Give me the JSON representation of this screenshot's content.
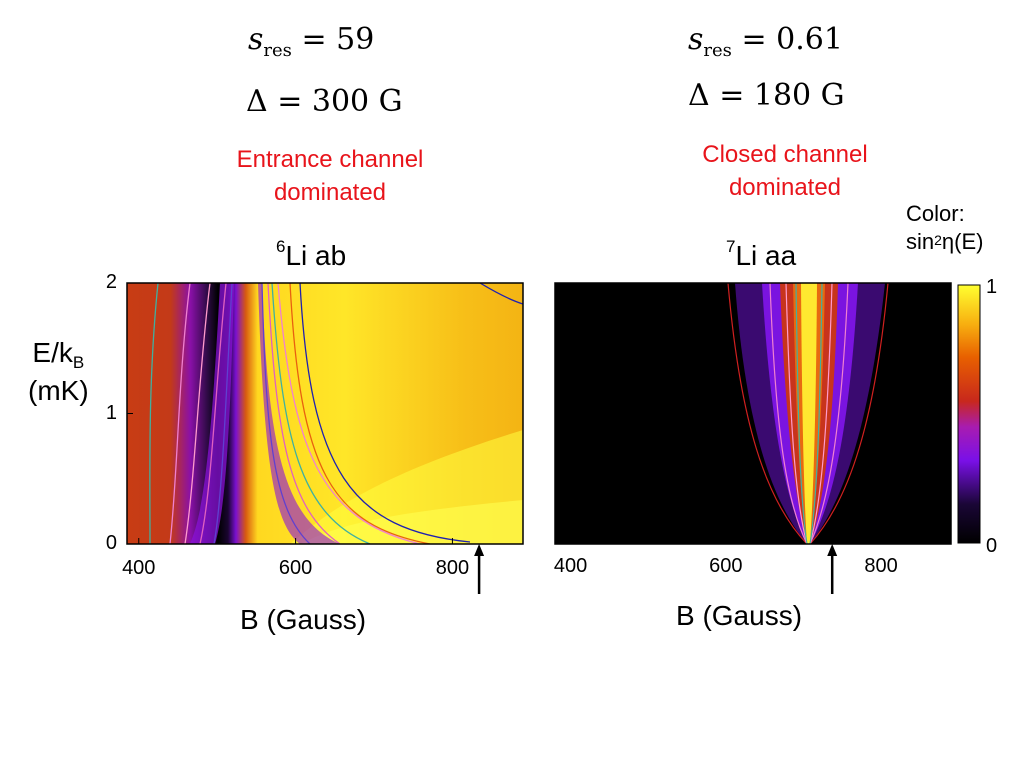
{
  "annotations": {
    "left_sres_symbol": "s",
    "left_sres_sub": "res",
    "left_sres_value": "= 59",
    "left_delta": "Δ = 300 G",
    "left_regime": "Entrance channel dominated",
    "right_sres_symbol": "s",
    "right_sres_sub": "res",
    "right_sres_value": "= 0.61",
    "right_delta": "Δ = 180 G",
    "right_regime": "Closed channel dominated"
  },
  "colorbar": {
    "caption_line1": "Color:",
    "caption_pre": "sin",
    "caption_sup": "2",
    "caption_post": "η(E)",
    "max_label": "1",
    "min_label": "0",
    "stops": [
      "#000000",
      "#3a0a6e",
      "#8a00ff",
      "#c0302a",
      "#e86a00",
      "#ffff30"
    ]
  },
  "chart_data": [
    {
      "type": "heatmap",
      "title_sup": "6",
      "title": "Li ab",
      "xlabel": "B (Gauss)",
      "ylabel_main": "E/k",
      "ylabel_sub": "B",
      "ylabel_unit": "(mK)",
      "xlim": [
        385,
        890
      ],
      "ylim": [
        0,
        2
      ],
      "xticks": [
        {
          "value": 400,
          "label": "400"
        },
        {
          "value": 600,
          "label": "600"
        },
        {
          "value": 800,
          "label": "800"
        }
      ],
      "yticks": [
        {
          "value": 0,
          "label": "0"
        },
        {
          "value": 1,
          "label": "1"
        },
        {
          "value": 2,
          "label": "2"
        }
      ],
      "resonance_zero_B": 545,
      "resonance_center_B": 834,
      "arrow_B": 834
    },
    {
      "type": "heatmap",
      "title_sup": "7",
      "title": "Li aa",
      "xlabel": "B (Gauss)",
      "xlim": [
        380,
        890
      ],
      "ylim": [
        0,
        2
      ],
      "xticks": [
        {
          "value": 400,
          "label": "400"
        },
        {
          "value": 600,
          "label": "600"
        },
        {
          "value": 800,
          "label": "800"
        }
      ],
      "resonance_center_B": 737,
      "arrow_B": 737
    }
  ]
}
